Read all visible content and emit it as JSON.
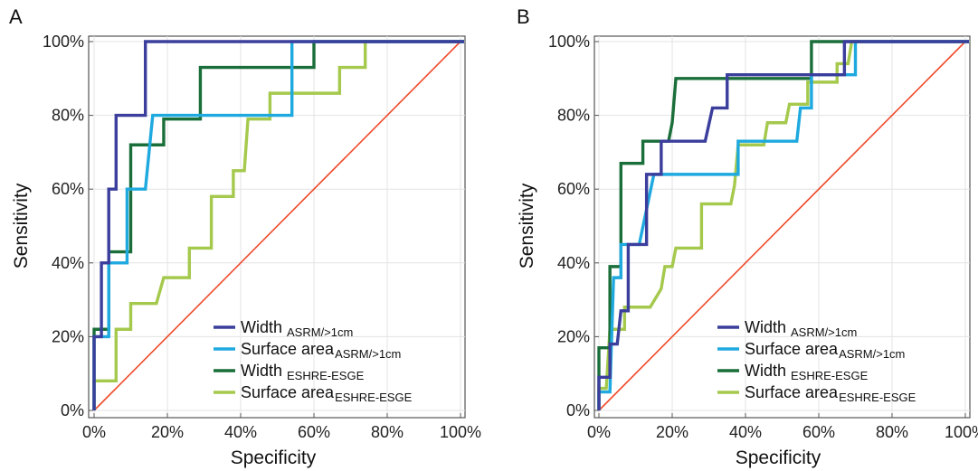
{
  "chart_data": [
    {
      "panel": "A",
      "type": "line",
      "xlabel": "Specificity",
      "ylabel": "Sensitivity",
      "xlim": [
        0,
        100
      ],
      "ylim": [
        0,
        100
      ],
      "xticks": [
        "0%",
        "20%",
        "40%",
        "60%",
        "80%",
        "100%"
      ],
      "yticks": [
        "0%",
        "20%",
        "40%",
        "60%",
        "80%",
        "100%"
      ],
      "grid": true,
      "legend_position": "bottom-right",
      "reference_line": {
        "color": "#f04a2a",
        "points": [
          [
            0,
            0
          ],
          [
            100,
            100
          ]
        ]
      },
      "series": [
        {
          "name_main": "Width",
          "name_sub": "ASRM/>1cm",
          "color": "#3b3e9c",
          "points": [
            [
              0,
              0
            ],
            [
              0,
              20
            ],
            [
              2,
              20
            ],
            [
              2,
              40
            ],
            [
              4,
              40
            ],
            [
              4,
              60
            ],
            [
              6,
              60
            ],
            [
              6,
              80
            ],
            [
              14,
              80
            ],
            [
              14,
              100
            ],
            [
              101,
              100
            ]
          ]
        },
        {
          "name_main": "Surface area",
          "name_sub": "ASRM/>1cm",
          "color": "#1ea9df",
          "points": [
            [
              0,
              0
            ],
            [
              0,
              20
            ],
            [
              4,
              20
            ],
            [
              4,
              40
            ],
            [
              9,
              40
            ],
            [
              9,
              60
            ],
            [
              14,
              60
            ],
            [
              16,
              80
            ],
            [
              54,
              80
            ],
            [
              54,
              100
            ],
            [
              101,
              100
            ]
          ]
        },
        {
          "name_main": "Width",
          "name_sub": "ESHRE-ESGE",
          "color": "#1a6e3a",
          "points": [
            [
              0,
              0
            ],
            [
              0,
              22
            ],
            [
              4,
              22
            ],
            [
              4,
              43
            ],
            [
              10,
              43
            ],
            [
              10,
              72
            ],
            [
              19,
              72
            ],
            [
              19,
              79
            ],
            [
              29,
              79
            ],
            [
              29,
              93
            ],
            [
              60,
              93
            ],
            [
              60,
              100
            ],
            [
              101,
              100
            ]
          ]
        },
        {
          "name_main": "Surface area",
          "name_sub": "ESHRE-ESGE",
          "color": "#a5c94d",
          "points": [
            [
              0,
              0
            ],
            [
              0,
              8
            ],
            [
              6,
              8
            ],
            [
              6,
              22
            ],
            [
              10,
              22
            ],
            [
              10,
              29
            ],
            [
              17,
              29
            ],
            [
              19,
              36
            ],
            [
              26,
              36
            ],
            [
              26,
              44
            ],
            [
              32,
              44
            ],
            [
              32,
              58
            ],
            [
              38,
              58
            ],
            [
              38,
              65
            ],
            [
              41,
              65
            ],
            [
              42,
              79
            ],
            [
              48,
              79
            ],
            [
              48,
              86
            ],
            [
              67,
              86
            ],
            [
              67,
              93
            ],
            [
              74,
              93
            ],
            [
              74,
              100
            ],
            [
              101,
              100
            ]
          ]
        }
      ]
    },
    {
      "panel": "B",
      "type": "line",
      "xlabel": "Specificity",
      "ylabel": "Sensitivity",
      "xlim": [
        0,
        100
      ],
      "ylim": [
        0,
        100
      ],
      "xticks": [
        "0%",
        "20%",
        "40%",
        "60%",
        "80%",
        "100%"
      ],
      "yticks": [
        "0%",
        "20%",
        "40%",
        "60%",
        "80%",
        "100%"
      ],
      "grid": true,
      "legend_position": "bottom-right",
      "reference_line": {
        "color": "#f04a2a",
        "points": [
          [
            0,
            0
          ],
          [
            100,
            100
          ]
        ]
      },
      "series": [
        {
          "name_main": "Width",
          "name_sub": "ASRM/>1cm",
          "color": "#3b3e9c",
          "points": [
            [
              0,
              0
            ],
            [
              0,
              9
            ],
            [
              3,
              9
            ],
            [
              3,
              18
            ],
            [
              5,
              18
            ],
            [
              6,
              27
            ],
            [
              8,
              27
            ],
            [
              8,
              45
            ],
            [
              13,
              45
            ],
            [
              13,
              64
            ],
            [
              17,
              64
            ],
            [
              17,
              73
            ],
            [
              29,
              73
            ],
            [
              31,
              82
            ],
            [
              35,
              82
            ],
            [
              35,
              91
            ],
            [
              67,
              91
            ],
            [
              67,
              100
            ],
            [
              101,
              100
            ]
          ]
        },
        {
          "name_main": "Surface area",
          "name_sub": "ASRM/>1cm",
          "color": "#1ea9df",
          "points": [
            [
              0,
              0
            ],
            [
              0,
              5
            ],
            [
              3,
              5
            ],
            [
              4,
              36
            ],
            [
              6,
              36
            ],
            [
              6,
              45
            ],
            [
              11,
              45
            ],
            [
              15,
              64
            ],
            [
              38,
              64
            ],
            [
              38,
              73
            ],
            [
              54,
              73
            ],
            [
              55,
              82
            ],
            [
              58,
              82
            ],
            [
              58,
              91
            ],
            [
              70,
              91
            ],
            [
              70,
              100
            ],
            [
              101,
              100
            ]
          ]
        },
        {
          "name_main": "Width",
          "name_sub": "ESHRE-ESGE",
          "color": "#1a6e3a",
          "points": [
            [
              0,
              0
            ],
            [
              0,
              17
            ],
            [
              3,
              17
            ],
            [
              3,
              39
            ],
            [
              6,
              39
            ],
            [
              6,
              67
            ],
            [
              12,
              67
            ],
            [
              12,
              73
            ],
            [
              19,
              73
            ],
            [
              20,
              78
            ],
            [
              21,
              90
            ],
            [
              58,
              90
            ],
            [
              58,
              100
            ],
            [
              101,
              100
            ]
          ]
        },
        {
          "name_main": "Surface area",
          "name_sub": "ESHRE-ESGE",
          "color": "#a5c94d",
          "points": [
            [
              0,
              0
            ],
            [
              0,
              6
            ],
            [
              2,
              6
            ],
            [
              3,
              22
            ],
            [
              7,
              22
            ],
            [
              7,
              28
            ],
            [
              14,
              28
            ],
            [
              17,
              33
            ],
            [
              18,
              39
            ],
            [
              20,
              39
            ],
            [
              21,
              44
            ],
            [
              28,
              44
            ],
            [
              28,
              56
            ],
            [
              36,
              56
            ],
            [
              37,
              61
            ],
            [
              38,
              72
            ],
            [
              45,
              72
            ],
            [
              46,
              78
            ],
            [
              51,
              78
            ],
            [
              52,
              83
            ],
            [
              57,
              83
            ],
            [
              57,
              89
            ],
            [
              65,
              89
            ],
            [
              65,
              94
            ],
            [
              68,
              94
            ],
            [
              69,
              100
            ],
            [
              101,
              100
            ]
          ]
        }
      ]
    }
  ]
}
